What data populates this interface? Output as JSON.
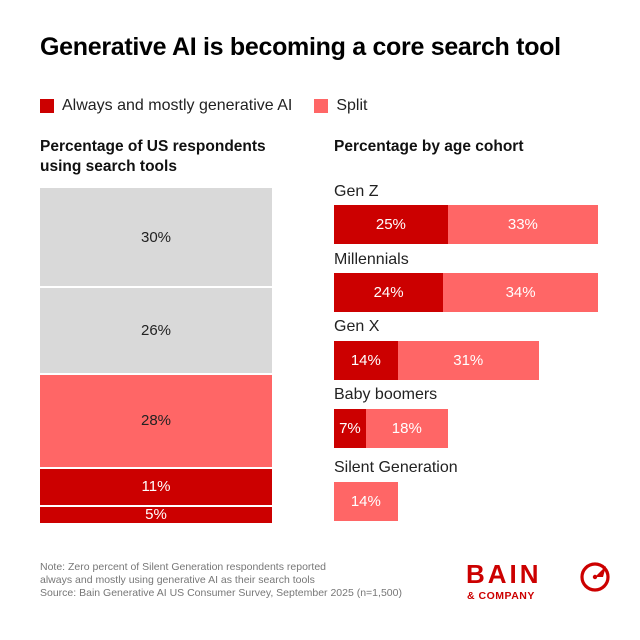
{
  "title": "Generative AI is becoming a core search tool",
  "legend": [
    {
      "label": "Always and mostly generative AI",
      "color": "#cc0000"
    },
    {
      "label": "Split",
      "color": "#ff6666"
    }
  ],
  "left_subtitle": "Percentage of US respondents using search tools",
  "right_subtitle": "Percentage by age cohort",
  "chart_data": [
    {
      "type": "bar",
      "stacked": true,
      "title": "Percentage of US respondents using search tools",
      "segments": [
        {
          "label": "30%",
          "value": 30,
          "color": "#d9d9d9"
        },
        {
          "label": "26%",
          "value": 26,
          "color": "#d9d9d9"
        },
        {
          "label": "28%",
          "value": 28,
          "color": "#ff6666"
        },
        {
          "label": "11%",
          "value": 11,
          "color": "#cc0000"
        },
        {
          "label": "5%",
          "value": 5,
          "color": "#cc0000"
        }
      ]
    },
    {
      "type": "bar",
      "orientation": "horizontal",
      "stacked": true,
      "title": "Percentage by age cohort",
      "categories": [
        "Gen Z",
        "Millennials",
        "Gen X",
        "Baby boomers",
        "Silent Generation"
      ],
      "series": [
        {
          "name": "Always and mostly generative AI",
          "values": [
            25,
            24,
            14,
            7,
            0
          ],
          "labels": [
            "25%",
            "24%",
            "14%",
            "7%",
            ""
          ],
          "color": "#cc0000"
        },
        {
          "name": "Split",
          "values": [
            33,
            34,
            31,
            18,
            14
          ],
          "labels": [
            "33%",
            "34%",
            "31%",
            "18%",
            "14%"
          ],
          "color": "#ff6666"
        }
      ]
    }
  ],
  "note_lines": [
    "Note: Zero percent of Silent Generation respondents reported",
    "always and mostly using generative AI as their search tools",
    "Source: Bain Generative AI US Consumer Survey, September 2025 (n=1,500)"
  ],
  "logo": {
    "word": "BAIN",
    "sub": "& COMPANY",
    "color": "#cc0000"
  }
}
